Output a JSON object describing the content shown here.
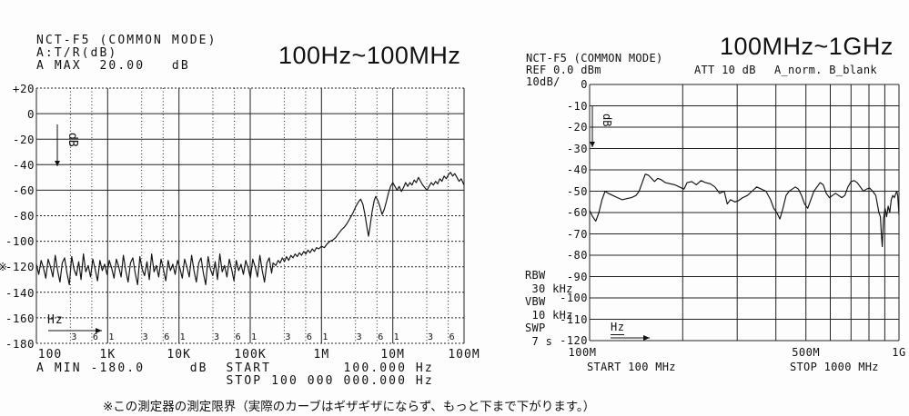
{
  "colors": {
    "ink": "#111111",
    "bg": "#fdfdfd"
  },
  "left_chart": {
    "header": "NCT-F5 (COMMON MODE)\nA:T/R(dB)\nA MAX  20.00   dB",
    "title": "100Hz~100MHz",
    "footer": "A MIN -180.0     dB  START        100.000 Hz\n                     STOP 100 000 000.000 Hz",
    "limit_marker": "※"
  },
  "right_chart": {
    "header": "NCT-F5 (COMMON MODE)\nREF 0.0 dBm\n10dB/",
    "title": "100MHz~1GHz",
    "att": "ATT 10 dB",
    "trace": "A_norm. B_blank",
    "sidebar": "RBW\n 30 kHz\nVBW\n 10 kHz\nSWP\n 7 s",
    "start": "START 100 MHz",
    "stop": "STOP 1000 MHz"
  },
  "note": "※この測定器の測定限界（実際のカーブはギザギザにならず、もっと下まで下がります。）",
  "chart_data": [
    {
      "id": "left",
      "type": "line",
      "title": "100Hz~100MHz",
      "xlabel": "Hz",
      "ylabel": "dB",
      "x_scale": "log",
      "x_range_hz": [
        100,
        100000000
      ],
      "x_log_range": [
        2,
        8
      ],
      "ylim": [
        -180,
        20
      ],
      "grid": true,
      "y_ticks": [
        {
          "v": 20,
          "label": "+20"
        },
        {
          "v": 0,
          "label": "0"
        },
        {
          "v": -20,
          "label": "-20"
        },
        {
          "v": -40,
          "label": "-40"
        },
        {
          "v": -60,
          "label": "-60"
        },
        {
          "v": -80,
          "label": "-80"
        },
        {
          "v": -100,
          "label": "-100"
        },
        {
          "v": -120,
          "label": "-120"
        },
        {
          "v": -140,
          "label": "-140"
        },
        {
          "v": -160,
          "label": "-160"
        },
        {
          "v": -180,
          "label": "-180"
        }
      ],
      "x_ticks": [
        {
          "log": 2,
          "label": "100",
          "dx": 15
        },
        {
          "log": 3,
          "label": "1K"
        },
        {
          "log": 4,
          "label": "10K"
        },
        {
          "log": 5,
          "label": "100K"
        },
        {
          "log": 6,
          "label": "1M"
        },
        {
          "log": 7,
          "label": "10M"
        },
        {
          "log": 8,
          "label": "100M"
        }
      ],
      "x_minor_ticks": [
        {
          "log": 2.477,
          "label": "3"
        },
        {
          "log": 2.778,
          "label": "6"
        },
        {
          "log": 3.0,
          "label": "1"
        },
        {
          "log": 3.477,
          "label": "3"
        },
        {
          "log": 3.778,
          "label": "6"
        },
        {
          "log": 4.0,
          "label": "1"
        },
        {
          "log": 4.477,
          "label": "3"
        },
        {
          "log": 4.778,
          "label": "6"
        },
        {
          "log": 5.0,
          "label": "1"
        },
        {
          "log": 5.477,
          "label": "3"
        },
        {
          "log": 5.778,
          "label": "6"
        },
        {
          "log": 6.0,
          "label": "1"
        },
        {
          "log": 6.477,
          "label": "3"
        },
        {
          "log": 6.778,
          "label": "6"
        },
        {
          "log": 7.0,
          "label": "1"
        },
        {
          "log": 7.477,
          "label": "3"
        },
        {
          "log": 7.778,
          "label": "6"
        }
      ],
      "x_grid_major_logs": [
        2,
        3,
        4,
        5,
        6,
        7,
        8
      ],
      "x_grid_minor_logs": [
        2.477,
        2.778,
        3.477,
        3.778,
        4.477,
        4.778,
        5.477,
        5.778,
        6.477,
        6.778,
        7.477,
        7.778
      ],
      "series": [
        {
          "name": "A:T/R(dB)",
          "noise_floor": {
            "logf_start": 2.0,
            "step": 0.033,
            "count": 101,
            "base_db": -120,
            "jitter_db": [
              2,
              -6,
              5,
              -1,
              -9,
              6,
              0,
              -8,
              9,
              -3,
              -12,
              3,
              7,
              -5,
              -14,
              8,
              -2,
              -7,
              4,
              -10,
              10,
              -4,
              1,
              -8,
              6,
              -2,
              -11,
              5,
              -3
            ]
          },
          "points": [
            [
              5.32,
              -117
            ],
            [
              5.36,
              -119
            ],
            [
              5.39,
              -115
            ],
            [
              5.42,
              -117
            ],
            [
              5.45,
              -113
            ],
            [
              5.48,
              -116
            ],
            [
              5.51,
              -112
            ],
            [
              5.54,
              -115
            ],
            [
              5.57,
              -111
            ],
            [
              5.6,
              -113
            ],
            [
              5.63,
              -110
            ],
            [
              5.66,
              -112
            ],
            [
              5.69,
              -109
            ],
            [
              5.72,
              -111
            ],
            [
              5.75,
              -108
            ],
            [
              5.78,
              -110
            ],
            [
              5.81,
              -107
            ],
            [
              5.84,
              -109
            ],
            [
              5.87,
              -106
            ],
            [
              5.9,
              -108
            ],
            [
              5.93,
              -105
            ],
            [
              5.96,
              -106
            ],
            [
              6.0,
              -104
            ],
            [
              6.04,
              -105
            ],
            [
              6.08,
              -102
            ],
            [
              6.12,
              -100
            ],
            [
              6.16,
              -99
            ],
            [
              6.2,
              -97
            ],
            [
              6.24,
              -94
            ],
            [
              6.28,
              -91
            ],
            [
              6.32,
              -89
            ],
            [
              6.36,
              -86
            ],
            [
              6.4,
              -82
            ],
            [
              6.44,
              -78
            ],
            [
              6.48,
              -73
            ],
            [
              6.52,
              -69
            ],
            [
              6.55,
              -67
            ],
            [
              6.58,
              -71
            ],
            [
              6.61,
              -79
            ],
            [
              6.64,
              -90
            ],
            [
              6.66,
              -96
            ],
            [
              6.68,
              -89
            ],
            [
              6.71,
              -77
            ],
            [
              6.74,
              -68
            ],
            [
              6.76,
              -65
            ],
            [
              6.79,
              -68
            ],
            [
              6.82,
              -73
            ],
            [
              6.85,
              -79
            ],
            [
              6.88,
              -75
            ],
            [
              6.91,
              -69
            ],
            [
              6.94,
              -62
            ],
            [
              6.97,
              -57
            ],
            [
              7.0,
              -54
            ],
            [
              7.03,
              -57
            ],
            [
              7.06,
              -60
            ],
            [
              7.09,
              -57
            ],
            [
              7.12,
              -61
            ],
            [
              7.15,
              -58
            ],
            [
              7.18,
              -54
            ],
            [
              7.21,
              -57
            ],
            [
              7.24,
              -54
            ],
            [
              7.27,
              -56
            ],
            [
              7.3,
              -52
            ],
            [
              7.33,
              -54
            ],
            [
              7.36,
              -50
            ],
            [
              7.39,
              -53
            ],
            [
              7.42,
              -56
            ],
            [
              7.45,
              -58
            ],
            [
              7.48,
              -60
            ],
            [
              7.51,
              -57
            ],
            [
              7.54,
              -54
            ],
            [
              7.57,
              -56
            ],
            [
              7.6,
              -53
            ],
            [
              7.63,
              -55
            ],
            [
              7.66,
              -51
            ],
            [
              7.69,
              -53
            ],
            [
              7.72,
              -49
            ],
            [
              7.75,
              -51
            ],
            [
              7.78,
              -48
            ],
            [
              7.81,
              -46
            ],
            [
              7.84,
              -49
            ],
            [
              7.87,
              -47
            ],
            [
              7.9,
              -50
            ],
            [
              7.93,
              -53
            ],
            [
              7.96,
              -51
            ],
            [
              8.0,
              -56
            ]
          ]
        }
      ],
      "footer_readouts": {
        "a_min": "-180.0 dB",
        "start": "100.000 Hz",
        "stop": "100 000 000.000 Hz"
      }
    },
    {
      "id": "right",
      "type": "line",
      "title": "100MHz~1GHz",
      "xlabel": "Hz",
      "ylabel": "dB",
      "x_scale": "log",
      "x_range_hz": [
        100000000,
        1000000000
      ],
      "x_log_range": [
        8,
        9
      ],
      "ylim": [
        -120,
        0
      ],
      "grid": true,
      "y_ticks": [
        {
          "v": 0,
          "label": "0"
        },
        {
          "v": -10,
          "label": "-10"
        },
        {
          "v": -20,
          "label": "-20"
        },
        {
          "v": -30,
          "label": "-30"
        },
        {
          "v": -40,
          "label": "-40"
        },
        {
          "v": -50,
          "label": "-50"
        },
        {
          "v": -60,
          "label": "-60"
        },
        {
          "v": -70,
          "label": "-70"
        },
        {
          "v": -80,
          "label": "-80"
        },
        {
          "v": -90,
          "label": "-90"
        },
        {
          "v": -100,
          "label": "-100"
        },
        {
          "v": -110,
          "label": "-110"
        },
        {
          "v": -120,
          "label": "-120"
        }
      ],
      "x_ticks": [
        {
          "log": 8,
          "label": "100M",
          "dx": -8
        },
        {
          "log": 8.699,
          "label": "500M"
        },
        {
          "log": 9,
          "label": "1G"
        }
      ],
      "x_grid_major_logs": [
        8,
        8.301,
        8.477,
        8.602,
        8.699,
        8.778,
        8.845,
        8.903,
        8.954,
        9
      ],
      "series": [
        {
          "name": "A_norm",
          "points": [
            [
              8.0,
              -59
            ],
            [
              8.01,
              -62
            ],
            [
              8.02,
              -64
            ],
            [
              8.03,
              -60
            ],
            [
              8.04,
              -54
            ],
            [
              8.05,
              -50
            ],
            [
              8.06,
              -51
            ],
            [
              8.075,
              -52
            ],
            [
              8.09,
              -53
            ],
            [
              8.105,
              -54
            ],
            [
              8.12,
              -53.5
            ],
            [
              8.135,
              -53
            ],
            [
              8.15,
              -52
            ],
            [
              8.16,
              -50
            ],
            [
              8.17,
              -46
            ],
            [
              8.18,
              -42
            ],
            [
              8.19,
              -42.5
            ],
            [
              8.2,
              -44
            ],
            [
              8.21,
              -45.5
            ],
            [
              8.22,
              -44
            ],
            [
              8.23,
              -44.5
            ],
            [
              8.245,
              -46
            ],
            [
              8.26,
              -46.5
            ],
            [
              8.275,
              -47
            ],
            [
              8.29,
              -48
            ],
            [
              8.305,
              -49
            ],
            [
              8.315,
              -46
            ],
            [
              8.33,
              -45.5
            ],
            [
              8.345,
              -47
            ],
            [
              8.36,
              -45
            ],
            [
              8.375,
              -46
            ],
            [
              8.39,
              -46.5
            ],
            [
              8.405,
              -48
            ],
            [
              8.42,
              -51
            ],
            [
              8.435,
              -50
            ],
            [
              8.445,
              -56
            ],
            [
              8.455,
              -54
            ],
            [
              8.47,
              -55
            ],
            [
              8.48,
              -54.5
            ],
            [
              8.495,
              -53
            ],
            [
              8.51,
              -52
            ],
            [
              8.525,
              -50
            ],
            [
              8.54,
              -48
            ],
            [
              8.555,
              -49
            ],
            [
              8.57,
              -50
            ],
            [
              8.585,
              -54
            ],
            [
              8.595,
              -58
            ],
            [
              8.605,
              -60
            ],
            [
              8.615,
              -63
            ],
            [
              8.625,
              -58
            ],
            [
              8.635,
              -52
            ],
            [
              8.645,
              -50
            ],
            [
              8.655,
              -49
            ],
            [
              8.665,
              -48
            ],
            [
              8.675,
              -49
            ],
            [
              8.685,
              -52
            ],
            [
              8.695,
              -56
            ],
            [
              8.705,
              -58
            ],
            [
              8.715,
              -54
            ],
            [
              8.725,
              -50
            ],
            [
              8.735,
              -48
            ],
            [
              8.745,
              -46
            ],
            [
              8.755,
              -47
            ],
            [
              8.765,
              -51
            ],
            [
              8.775,
              -53
            ],
            [
              8.785,
              -52
            ],
            [
              8.795,
              -51
            ],
            [
              8.805,
              -52
            ],
            [
              8.815,
              -53
            ],
            [
              8.825,
              -52
            ],
            [
              8.835,
              -48
            ],
            [
              8.845,
              -45.5
            ],
            [
              8.855,
              -45
            ],
            [
              8.865,
              -46
            ],
            [
              8.875,
              -48
            ],
            [
              8.885,
              -50
            ],
            [
              8.895,
              -49
            ],
            [
              8.905,
              -48.5
            ],
            [
              8.915,
              -50
            ],
            [
              8.925,
              -52
            ],
            [
              8.93,
              -56
            ],
            [
              8.935,
              -60
            ],
            [
              8.94,
              -62
            ],
            [
              8.943,
              -70
            ],
            [
              8.946,
              -76
            ],
            [
              8.95,
              -63
            ],
            [
              8.955,
              -58
            ],
            [
              8.96,
              -62
            ],
            [
              8.965,
              -57
            ],
            [
              8.97,
              -60
            ],
            [
              8.975,
              -54
            ],
            [
              8.98,
              -52
            ],
            [
              8.985,
              -53
            ],
            [
              8.99,
              -51
            ],
            [
              8.993,
              -50
            ],
            [
              8.996,
              -52
            ],
            [
              9.0,
              -61
            ]
          ]
        }
      ],
      "settings": {
        "ref": "0.0 dBm",
        "scale": "10dB/",
        "att": "10 dB",
        "rbw": "30 kHz",
        "vbw": "10 kHz",
        "swp": "7 s"
      }
    }
  ]
}
